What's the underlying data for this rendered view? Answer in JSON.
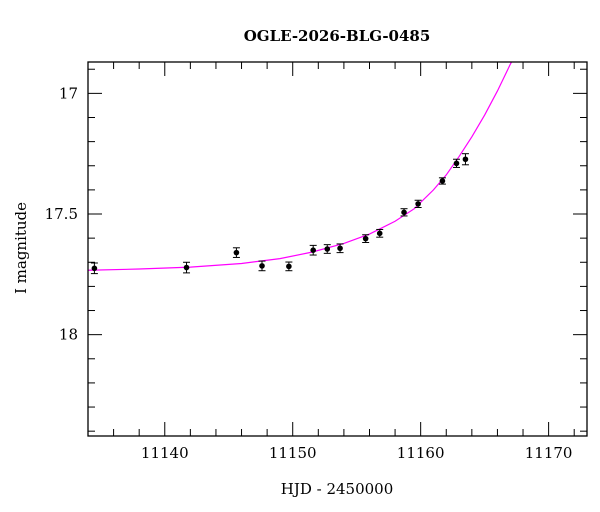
{
  "chart_data": {
    "type": "scatter",
    "title": "OGLE-2026-BLG-0485",
    "xlabel": "HJD - 2450000",
    "ylabel": "I magnitude",
    "xlim": [
      11134.0,
      11173.0
    ],
    "ylim": [
      18.42,
      16.87
    ],
    "y_inverted": true,
    "grid": false,
    "x_major_ticks": [
      11140,
      11150,
      11160,
      11170
    ],
    "x_tick_labels": [
      "11140",
      "11150",
      "11160",
      "11170"
    ],
    "y_major_ticks": [
      17,
      17.5,
      18
    ],
    "y_tick_labels": [
      "17",
      "17.5",
      "18"
    ],
    "colors": {
      "points": "#000000",
      "model": "#ff00ff"
    },
    "series": [
      {
        "kind": "points",
        "points": [
          {
            "x": 11134.5,
            "y": 17.725,
            "err": 0.022
          },
          {
            "x": 11141.7,
            "y": 17.722,
            "err": 0.022
          },
          {
            "x": 11145.6,
            "y": 17.66,
            "err": 0.02
          },
          {
            "x": 11147.6,
            "y": 17.715,
            "err": 0.02
          },
          {
            "x": 11149.7,
            "y": 17.717,
            "err": 0.018
          },
          {
            "x": 11151.6,
            "y": 17.65,
            "err": 0.02
          },
          {
            "x": 11152.7,
            "y": 17.645,
            "err": 0.018
          },
          {
            "x": 11153.7,
            "y": 17.642,
            "err": 0.018
          },
          {
            "x": 11155.7,
            "y": 17.602,
            "err": 0.016
          },
          {
            "x": 11156.8,
            "y": 17.58,
            "err": 0.016
          },
          {
            "x": 11158.7,
            "y": 17.493,
            "err": 0.015
          },
          {
            "x": 11159.8,
            "y": 17.458,
            "err": 0.015
          },
          {
            "x": 11161.7,
            "y": 17.363,
            "err": 0.013
          },
          {
            "x": 11162.8,
            "y": 17.29,
            "err": 0.017
          },
          {
            "x": 11163.5,
            "y": 17.273,
            "err": 0.023
          }
        ]
      },
      {
        "kind": "model",
        "points": [
          {
            "x": 11134.0,
            "y": 17.733
          },
          {
            "x": 11138.0,
            "y": 17.728
          },
          {
            "x": 11142.0,
            "y": 17.72
          },
          {
            "x": 11146.0,
            "y": 17.705
          },
          {
            "x": 11149.0,
            "y": 17.685
          },
          {
            "x": 11151.5,
            "y": 17.658
          },
          {
            "x": 11154.0,
            "y": 17.622
          },
          {
            "x": 11156.0,
            "y": 17.583
          },
          {
            "x": 11158.0,
            "y": 17.53
          },
          {
            "x": 11159.5,
            "y": 17.478
          },
          {
            "x": 11161.0,
            "y": 17.4
          },
          {
            "x": 11162.0,
            "y": 17.338
          },
          {
            "x": 11163.0,
            "y": 17.262
          },
          {
            "x": 11164.0,
            "y": 17.18
          },
          {
            "x": 11165.0,
            "y": 17.09
          },
          {
            "x": 11166.0,
            "y": 16.99
          },
          {
            "x": 11167.0,
            "y": 16.88
          },
          {
            "x": 11167.2,
            "y": 16.86
          }
        ]
      }
    ]
  }
}
